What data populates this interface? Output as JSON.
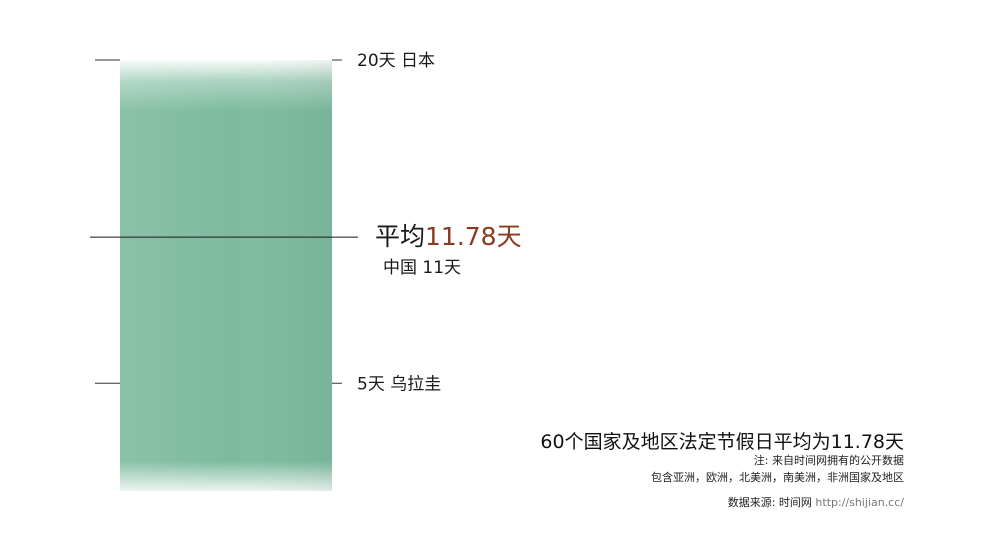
{
  "chart_data": {
    "type": "bar",
    "orientation": "vertical",
    "scale_max_days": 20,
    "bar_top_value": 20,
    "bar_color": "#7dbb9f",
    "average": {
      "prefix": "平均",
      "value_text": "11.78天",
      "value": 11.78,
      "value_color": "#8b3a1e"
    },
    "marks": [
      {
        "value": 20,
        "value_text": "20天",
        "country": "日本"
      },
      {
        "value": 11,
        "value_text": "11天",
        "country": "中国"
      },
      {
        "value": 5,
        "value_text": "5天",
        "country": "乌拉圭"
      }
    ]
  },
  "caption": {
    "title": "60个国家及地区法定节假日平均为11.78天",
    "note": "注: 来自时间网拥有的公开数据",
    "regions": "包含亚洲，欧洲，北美洲，南美洲，非洲国家及地区",
    "source_label": "数据来源: 时间网",
    "source_url": "http://shijian.cc/"
  }
}
